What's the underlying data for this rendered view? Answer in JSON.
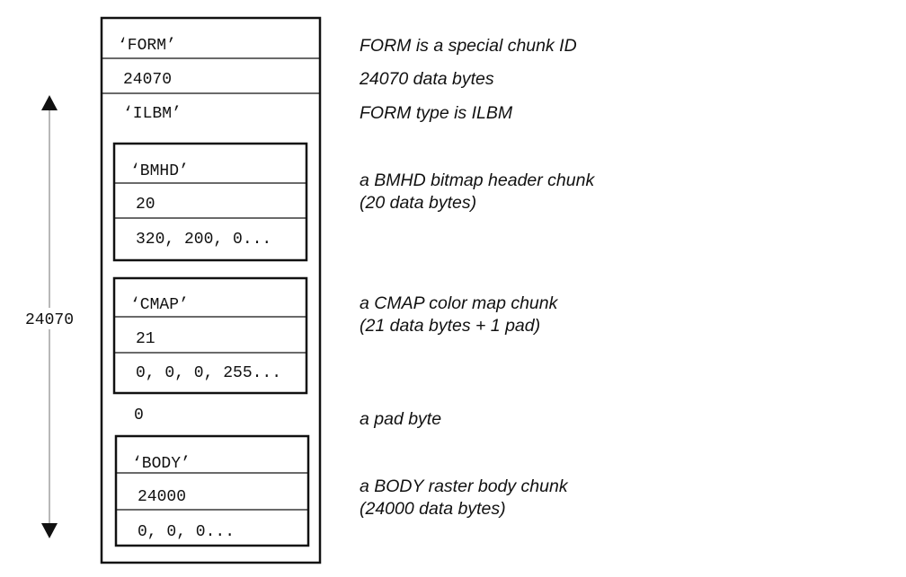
{
  "form": {
    "id": "'FORM'",
    "size": "24070",
    "type": "'ILBM'",
    "pad": "0"
  },
  "chunks": {
    "bmhd": {
      "id": "'BMHD'",
      "size": "20",
      "data": "320, 200, 0..."
    },
    "cmap": {
      "id": "'CMAP'",
      "size": "21",
      "data": "0, 0, 0, 255..."
    },
    "body": {
      "id": "'BODY'",
      "size": "24000",
      "data": "0,  0,  0..."
    }
  },
  "dimension_label": "24070",
  "descriptions": {
    "form_id": "FORM is a special chunk ID",
    "form_size": "24070 data bytes",
    "form_type": "FORM type is ILBM",
    "bmhd_line1": "a BMHD bitmap header chunk",
    "bmhd_line2": "(20 data bytes)",
    "cmap_line1": "a CMAP color map chunk",
    "cmap_line2": "(21 data bytes + 1 pad)",
    "pad": "a pad byte",
    "body_line1": "a BODY raster body chunk",
    "body_line2": "(24000 data bytes)"
  }
}
